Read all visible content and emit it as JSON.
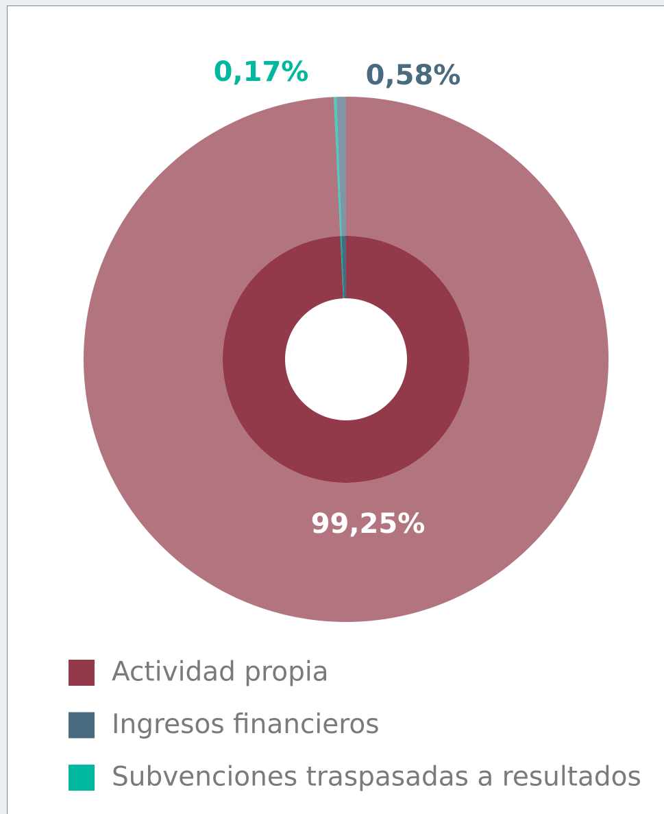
{
  "chart_data": {
    "type": "donut",
    "categories": [
      "Actividad propia",
      "Ingresos financieros",
      "Subvenciones traspasadas a resultados"
    ],
    "values": [
      99.25,
      0.58,
      0.17
    ],
    "value_labels": [
      "99,25%",
      "0,58%",
      "0,17%"
    ],
    "colors": [
      "#923a4a",
      "#4a6a80",
      "#00b8a0"
    ],
    "legend": "bottom"
  }
}
